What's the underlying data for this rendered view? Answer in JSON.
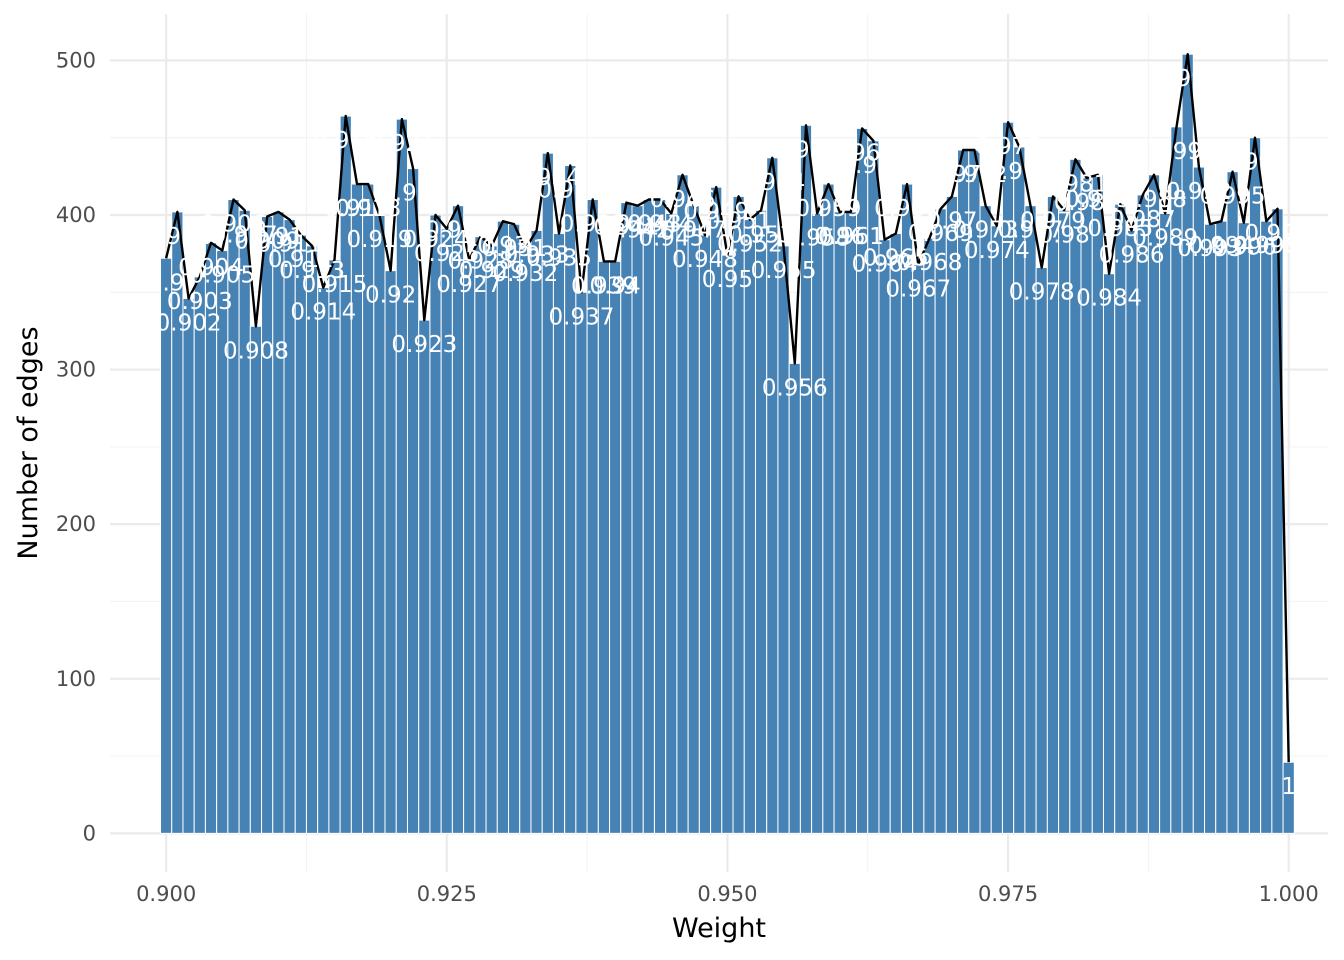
{
  "chart_data": {
    "type": "bar",
    "xlabel": "Weight",
    "ylabel": "Number of edges",
    "xlim": [
      0.895,
      1.0035
    ],
    "ylim": [
      -25,
      530
    ],
    "x_ticks": [
      "0.900",
      "0.925",
      "0.950",
      "0.975",
      "1.000"
    ],
    "x_tick_values": [
      0.9,
      0.925,
      0.95,
      0.975,
      1.0
    ],
    "y_ticks": [
      "0",
      "100",
      "200",
      "300",
      "400",
      "500"
    ],
    "y_tick_values": [
      0,
      100,
      200,
      300,
      400,
      500
    ],
    "grid": true,
    "bar_color": "#4682b4",
    "line_color": "#000000",
    "label_color": "#ffffff",
    "x": [
      0.9,
      0.901,
      0.902,
      0.903,
      0.904,
      0.905,
      0.906,
      0.907,
      0.908,
      0.909,
      0.91,
      0.911,
      0.912,
      0.913,
      0.914,
      0.915,
      0.916,
      0.917,
      0.918,
      0.919,
      0.92,
      0.921,
      0.922,
      0.923,
      0.924,
      0.925,
      0.926,
      0.927,
      0.928,
      0.929,
      0.93,
      0.931,
      0.932,
      0.933,
      0.934,
      0.935,
      0.936,
      0.937,
      0.938,
      0.939,
      0.94,
      0.941,
      0.942,
      0.943,
      0.944,
      0.945,
      0.946,
      0.947,
      0.948,
      0.949,
      0.95,
      0.951,
      0.952,
      0.953,
      0.954,
      0.955,
      0.956,
      0.957,
      0.958,
      0.959,
      0.96,
      0.961,
      0.962,
      0.963,
      0.964,
      0.965,
      0.966,
      0.967,
      0.968,
      0.969,
      0.97,
      0.971,
      0.972,
      0.973,
      0.974,
      0.975,
      0.976,
      0.977,
      0.978,
      0.979,
      0.98,
      0.981,
      0.982,
      0.983,
      0.984,
      0.985,
      0.986,
      0.987,
      0.988,
      0.989,
      0.99,
      0.991,
      0.992,
      0.993,
      0.994,
      0.995,
      0.996,
      0.997,
      0.998,
      0.999,
      1.0
    ],
    "values": [
      372,
      402,
      346,
      360,
      382,
      377,
      410,
      403,
      328,
      399,
      402,
      397,
      387,
      380,
      353,
      371,
      464,
      420,
      420,
      400,
      364,
      462,
      430,
      332,
      400,
      391,
      406,
      371,
      386,
      380,
      396,
      394,
      378,
      390,
      440,
      388,
      432,
      350,
      410,
      370,
      370,
      408,
      406,
      410,
      410,
      401,
      426,
      406,
      387,
      418,
      374,
      412,
      397,
      403,
      437,
      380,
      304,
      458,
      401,
      420,
      402,
      402,
      456,
      448,
      384,
      388,
      420,
      368,
      385,
      404,
      412,
      442,
      442,
      406,
      393,
      460,
      444,
      406,
      366,
      412,
      403,
      436,
      424,
      426,
      362,
      407,
      390,
      413,
      426,
      401,
      457,
      504,
      431,
      394,
      396,
      428,
      395,
      450,
      396,
      404,
      46
    ],
    "labels": [
      "0.9",
      "0.901",
      "0.902",
      "0.903",
      "0.904",
      "0.905",
      "0.906",
      "0.907",
      "0.908",
      "0.909",
      "0.91",
      "0.911",
      "0.912",
      "0.913",
      "0.914",
      "0.915",
      "0.916",
      "0.917",
      "0.918",
      "0.919",
      "0.92",
      "0.921",
      "0.922",
      "0.923",
      "0.924",
      "0.925",
      "0.926",
      "0.927",
      "0.928",
      "0.929",
      "0.93",
      "0.931",
      "0.932",
      "0.933",
      "0.934",
      "0.935",
      "0.936",
      "0.937",
      "0.938",
      "0.939",
      "0.94",
      "0.941",
      "0.942",
      "0.943",
      "0.944",
      "0.945",
      "0.946",
      "0.947",
      "0.948",
      "0.949",
      "0.95",
      "0.951",
      "0.952",
      "0.953",
      "0.954",
      "0.955",
      "0.956",
      "0.957",
      "0.958",
      "0.959",
      "0.96",
      "0.961",
      "0.962",
      "0.963",
      "0.964",
      "0.965",
      "0.966",
      "0.967",
      "0.968",
      "0.969",
      "0.97",
      "0.971",
      "0.972",
      "0.973",
      "0.974",
      "0.975",
      "0.976",
      "0.977",
      "0.978",
      "0.979",
      "0.98",
      "0.981",
      "0.982",
      "0.983",
      "0.984",
      "0.985",
      "0.986",
      "0.987",
      "0.988",
      "0.989",
      "0.99",
      "0.991",
      "0.992",
      "0.993",
      "0.994",
      "0.995",
      "0.996",
      "0.997",
      "0.998",
      "0.999",
      "1"
    ]
  }
}
